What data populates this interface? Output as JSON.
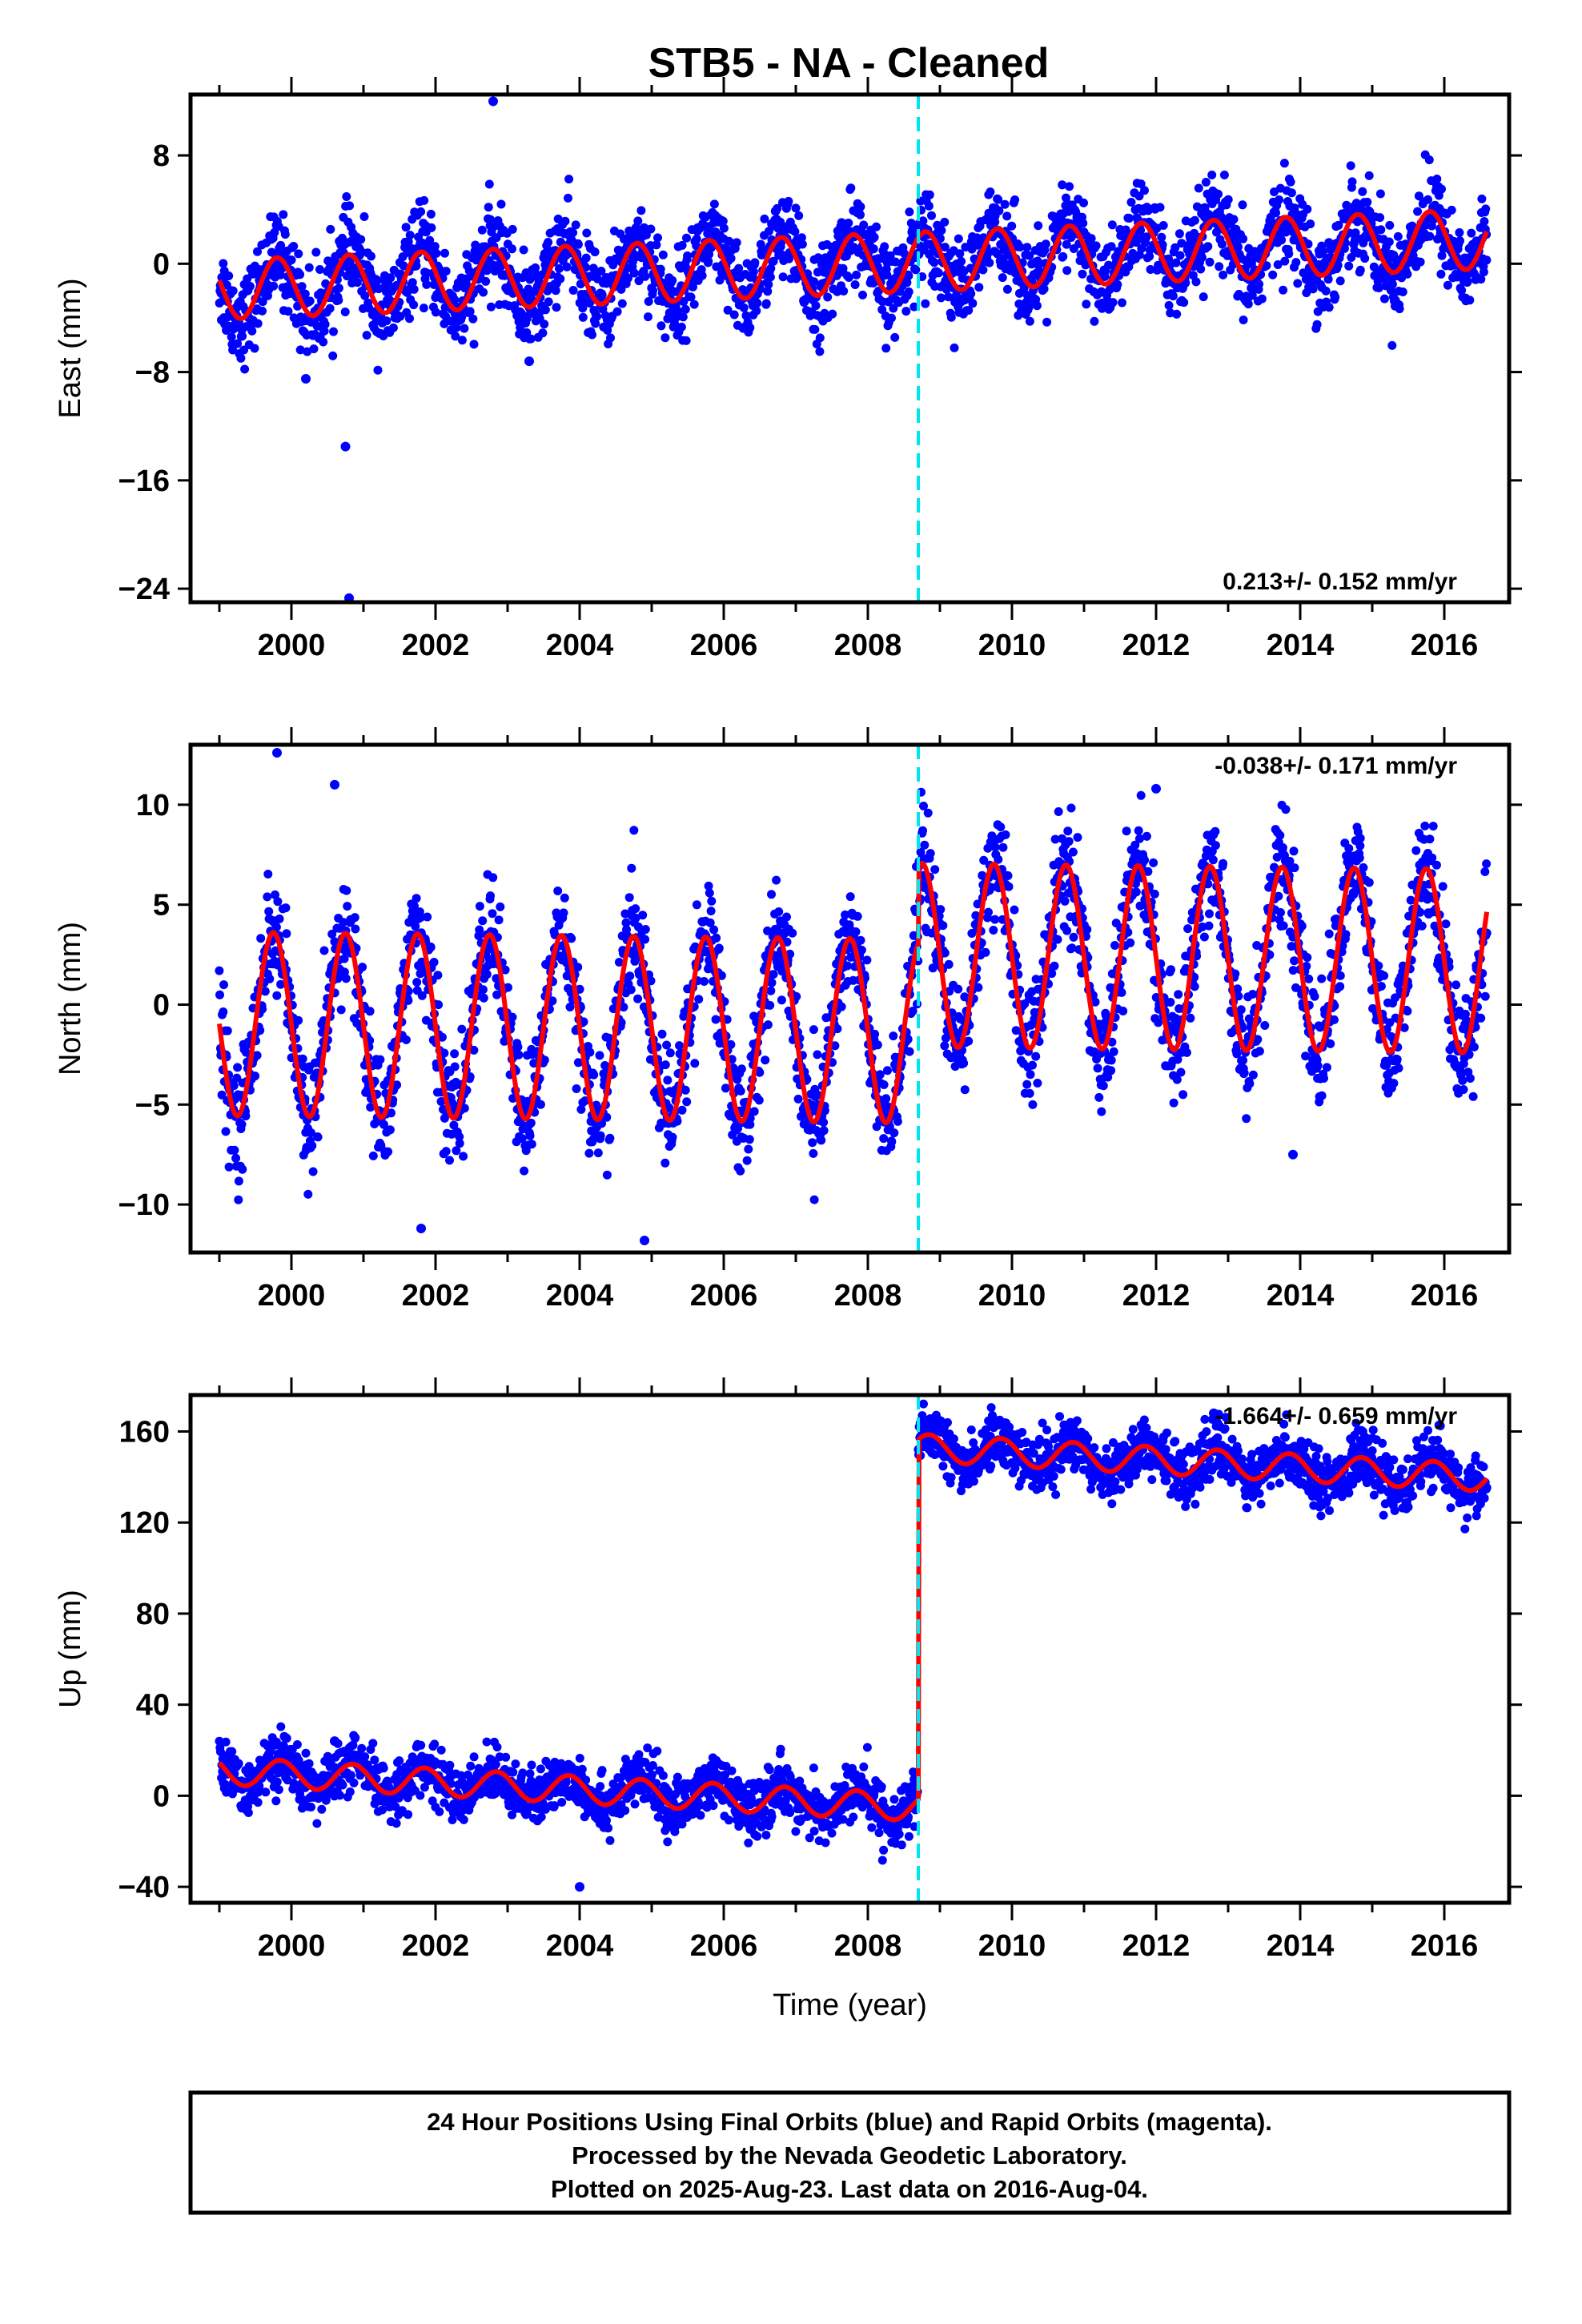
{
  "title": "STB5  - NA - Cleaned",
  "colors": {
    "points": "#0000ff",
    "model": "#ff0000",
    "offset_line": "#00e5ee",
    "frame": "#000000"
  },
  "chart_data": [
    {
      "type": "scatter",
      "ylabel": "East (mm)",
      "xlabel": "",
      "xlim": [
        1998.6,
        2016.9
      ],
      "ylim": [
        -25.0,
        12.5
      ],
      "y_ticks": [
        "8",
        "0",
        "−8",
        "−16",
        "−24"
      ],
      "x_ticks": [
        "2000",
        "2002",
        "2004",
        "2006",
        "2008",
        "2010",
        "2012",
        "2014",
        "2016"
      ],
      "rate": "0.213+/- 0.152 mm/yr",
      "offset_line_x": 2008.7,
      "series": [
        {
          "label": "daily positions",
          "x_start": 1999.0,
          "x_end": 2016.59,
          "base_before": 0.0,
          "base_after": 0.0,
          "trend": 0.213,
          "amp": 2.2,
          "phase": 0.55,
          "scatter": 1.6
        },
        {
          "label": "model fit",
          "amp": 2.2,
          "phase": 0.55
        }
      ],
      "outliers": [
        [
          2002.8,
          12.0
        ],
        [
          2000.75,
          -13.5
        ],
        [
          2000.8,
          -24.7
        ],
        [
          2000.2,
          -8.5
        ],
        [
          2003.3,
          -7.2
        ]
      ]
    },
    {
      "type": "scatter",
      "ylabel": "North (mm)",
      "xlabel": "",
      "xlim": [
        1998.6,
        2016.9
      ],
      "ylim": [
        -12.4,
        13.0
      ],
      "y_ticks": [
        "10",
        "5",
        "0",
        "−5",
        "−10"
      ],
      "x_ticks": [
        "2000",
        "2002",
        "2004",
        "2006",
        "2008",
        "2010",
        "2012",
        "2014",
        "2016"
      ],
      "rate": "-0.038+/- 0.171 mm/yr",
      "offset_line_x": 2008.7,
      "series": [
        {
          "label": "daily positions",
          "x_start": 1999.0,
          "x_end": 2016.59,
          "base_before": -1.3,
          "base_after": 2.5,
          "trend": -0.038,
          "amp": 4.6,
          "phase": 0.5,
          "scatter": 1.4
        },
        {
          "label": "model fit",
          "amp": 4.6,
          "phase": 0.5
        }
      ],
      "outliers": [
        [
          1999.8,
          12.6
        ],
        [
          2000.6,
          11.0
        ],
        [
          2012.0,
          10.8
        ],
        [
          2004.9,
          -11.8
        ],
        [
          2001.8,
          -11.2
        ],
        [
          2013.9,
          -7.5
        ]
      ]
    },
    {
      "type": "scatter",
      "ylabel": "Up (mm)",
      "xlabel": "Time (year)",
      "xlim": [
        1998.6,
        2016.9
      ],
      "ylim": [
        -47.0,
        176.0
      ],
      "y_ticks": [
        "160",
        "120",
        "80",
        "40",
        "0",
        "−40"
      ],
      "x_ticks": [
        "2000",
        "2002",
        "2004",
        "2006",
        "2008",
        "2010",
        "2012",
        "2014",
        "2016"
      ],
      "rate": "-1.664+/- 0.659 mm/yr",
      "offset_line_x": 2008.7,
      "series": [
        {
          "label": "daily positions",
          "x_start": 1999.0,
          "x_end": 2016.59,
          "base_before": -4.0,
          "base_after": 154.0,
          "trend": -1.664,
          "amp": 6.0,
          "phase": 0.6,
          "scatter": 6.0
        },
        {
          "label": "model fit",
          "amp": 6.0,
          "phase": 0.6
        }
      ],
      "outliers": [
        [
          2000.6,
          24.0
        ],
        [
          2004.0,
          -40.0
        ],
        [
          2012.8,
          168.0
        ]
      ]
    }
  ],
  "footer": {
    "line1": "24 Hour Positions Using Final Orbits (blue) and Rapid Orbits (magenta).",
    "line2": "Processed by the Nevada Geodetic Laboratory.",
    "line3": "Plotted on 2025-Aug-23. Last data on 2016-Aug-04."
  }
}
